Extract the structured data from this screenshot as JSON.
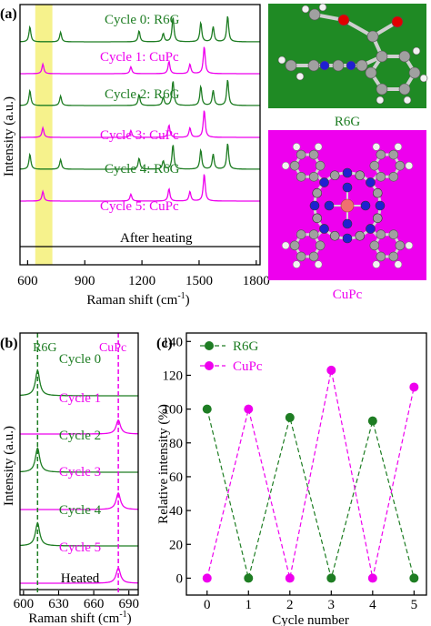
{
  "colors": {
    "r6g": "#1e7d23",
    "cupc": "#ee00ee",
    "heated": "#000000",
    "highlight": "#f6f28c",
    "r6g_bg": "#1f8a24",
    "cupc_bg": "#ee00ee",
    "carbon": "#a0a0a0",
    "hydrogen": "#f2f2f2",
    "nitrogen": "#2020d0",
    "oxygen": "#e00000",
    "copper": "#f07070"
  },
  "panels": {
    "a": {
      "label": "(a)",
      "xlabel": "Raman shift (cm",
      "xlabel_sup": "-1",
      "xlabel_close": ")",
      "ylabel": "Intensity (a.u.)",
      "xticks": [
        "600",
        "900",
        "1200",
        "1500",
        "1800"
      ],
      "traces": [
        "Cycle 0: R6G",
        "Cycle 1: CuPc",
        "Cycle 2: R6G",
        "Cycle 3: CuPc",
        "Cycle 4: R6G",
        "Cycle 5: CuPc",
        "After heating"
      ]
    },
    "r6g_mol": {
      "caption": "R6G"
    },
    "cupc_mol": {
      "caption": "CuPc"
    },
    "b": {
      "label": "(b)",
      "xlabel": "Raman shift (cm",
      "xlabel_sup": "-1",
      "xlabel_close": ")",
      "ylabel": "Intensity (a.u.)",
      "xticks": [
        "600",
        "630",
        "660",
        "690"
      ],
      "marker_r6g": "R6G",
      "marker_cupc": "CuPc",
      "traces": [
        "Cycle 0",
        "Cycle 1",
        "Cycle 2",
        "Cycle 3",
        "Cycle 4",
        "Cycle 5",
        "Heated"
      ]
    }
  },
  "chart_data": [
    {
      "type": "line",
      "panel": "(a)",
      "xlabel": "Raman shift (cm-1)",
      "ylabel": "Intensity (a.u.)",
      "xlim": [
        560,
        1820
      ],
      "x_ticks": [
        600,
        900,
        1200,
        1500,
        1800
      ],
      "highlight_band": [
        640,
        730
      ],
      "series": [
        {
          "name": "Cycle 0: R6G",
          "peaks": [
            [
              612,
              0.55
            ],
            [
              773,
              0.35
            ],
            [
              1185,
              0.4
            ],
            [
              1312,
              0.3
            ],
            [
              1363,
              0.9
            ],
            [
              1509,
              0.7
            ],
            [
              1574,
              0.55
            ],
            [
              1650,
              0.95
            ]
          ]
        },
        {
          "name": "Cycle 1: CuPc",
          "peaks": [
            [
              680,
              0.35
            ],
            [
              1142,
              0.25
            ],
            [
              1342,
              0.45
            ],
            [
              1452,
              0.35
            ],
            [
              1527,
              1.0
            ]
          ]
        },
        {
          "name": "Cycle 2: R6G",
          "peaks": [
            [
              612,
              0.55
            ],
            [
              773,
              0.35
            ],
            [
              1185,
              0.4
            ],
            [
              1312,
              0.3
            ],
            [
              1363,
              0.9
            ],
            [
              1509,
              0.7
            ],
            [
              1574,
              0.55
            ],
            [
              1650,
              0.95
            ]
          ]
        },
        {
          "name": "Cycle 3: CuPc",
          "peaks": [
            [
              680,
              0.35
            ],
            [
              1142,
              0.25
            ],
            [
              1342,
              0.45
            ],
            [
              1452,
              0.35
            ],
            [
              1527,
              1.0
            ]
          ]
        },
        {
          "name": "Cycle 4: R6G",
          "peaks": [
            [
              612,
              0.55
            ],
            [
              773,
              0.35
            ],
            [
              1185,
              0.4
            ],
            [
              1312,
              0.3
            ],
            [
              1363,
              0.9
            ],
            [
              1509,
              0.7
            ],
            [
              1574,
              0.55
            ],
            [
              1650,
              0.95
            ]
          ]
        },
        {
          "name": "Cycle 5: CuPc",
          "peaks": [
            [
              680,
              0.35
            ],
            [
              1142,
              0.25
            ],
            [
              1342,
              0.45
            ],
            [
              1452,
              0.35
            ],
            [
              1527,
              1.0
            ]
          ]
        },
        {
          "name": "After heating",
          "peaks": []
        }
      ]
    },
    {
      "type": "line",
      "panel": "(b)",
      "xlabel": "Raman shift (cm-1)",
      "ylabel": "Intensity (a.u.)",
      "xlim": [
        597,
        698
      ],
      "x_ticks": [
        600,
        630,
        660,
        690
      ],
      "markers": [
        {
          "name": "R6G",
          "x": 612
        },
        {
          "name": "CuPc",
          "x": 681
        }
      ],
      "series": [
        {
          "name": "Cycle 0",
          "peak": [
            612,
            1.0
          ]
        },
        {
          "name": "Cycle 1",
          "peak": [
            681,
            0.55
          ]
        },
        {
          "name": "Cycle 2",
          "peak": [
            612,
            0.95
          ]
        },
        {
          "name": "Cycle 3",
          "peak": [
            681,
            0.65
          ]
        },
        {
          "name": "Cycle 4",
          "peak": [
            612,
            0.9
          ]
        },
        {
          "name": "Cycle 5",
          "peak": [
            681,
            0.6
          ]
        },
        {
          "name": "Heated",
          "peak": null
        }
      ]
    },
    {
      "type": "line",
      "panel": "(c)",
      "xlabel": "Cycle number",
      "ylabel": "Relative intensity (%)",
      "xlim": [
        -0.5,
        5.3
      ],
      "ylim": [
        -10,
        145
      ],
      "x_ticks": [
        0,
        1,
        2,
        3,
        4,
        5
      ],
      "y_ticks": [
        0,
        20,
        40,
        60,
        80,
        100,
        120,
        140
      ],
      "legend": "top-left",
      "x": [
        0,
        1,
        2,
        3,
        4,
        5
      ],
      "series": [
        {
          "name": "R6G",
          "values": [
            100,
            0,
            95,
            0,
            93,
            0
          ]
        },
        {
          "name": "CuPc",
          "values": [
            0,
            100,
            0,
            123,
            0,
            113
          ]
        }
      ],
      "label": "(c)"
    }
  ]
}
